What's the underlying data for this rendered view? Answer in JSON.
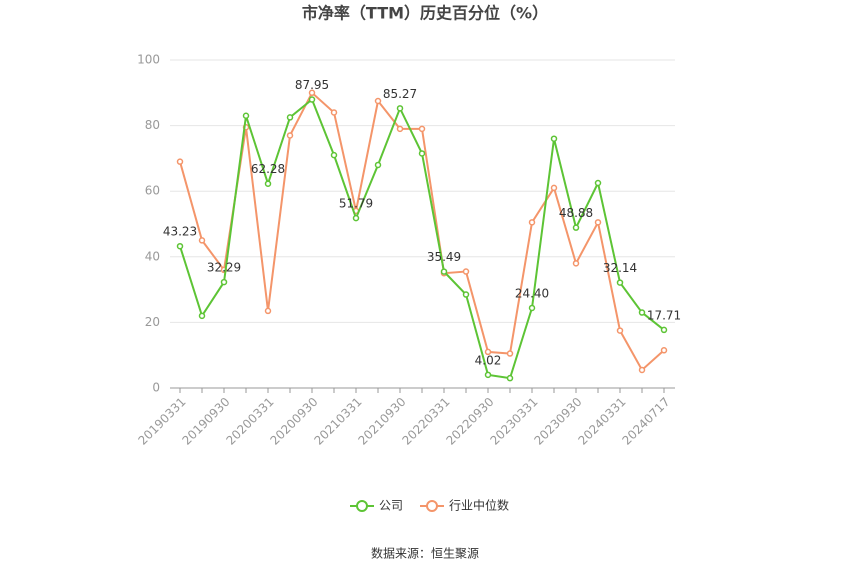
{
  "chart_data": {
    "type": "line",
    "title": "市净率（TTM）历史百分位（%）",
    "source": "数据来源：恒生聚源",
    "categories": [
      "20190331",
      null,
      "20190930",
      null,
      "20200331",
      null,
      "20200930",
      null,
      "20210331",
      null,
      "20210930",
      null,
      "20220331",
      null,
      "20220930",
      null,
      "20230331",
      null,
      "20230930",
      null,
      "20240331",
      null,
      "20240717"
    ],
    "series": [
      {
        "name": "公司",
        "color": "#5dc435",
        "values": [
          43.23,
          22,
          32.29,
          83,
          62.28,
          82.5,
          87.95,
          71,
          51.79,
          68,
          85.27,
          71.5,
          35.49,
          28.5,
          4.02,
          3,
          24.4,
          76,
          48.88,
          62.5,
          32.14,
          23,
          17.71
        ],
        "value_labels": [
          "43.23",
          null,
          "32.29",
          null,
          "62.28",
          null,
          "87.95",
          null,
          "51.79",
          null,
          "85.27",
          null,
          "35.49",
          null,
          "4.02",
          null,
          "24.40",
          null,
          "48.88",
          null,
          "32.14",
          null,
          "17.71"
        ]
      },
      {
        "name": "行业中位数",
        "color": "#f4956a",
        "values": [
          69,
          45,
          36,
          79.5,
          23.5,
          77,
          90,
          84,
          54,
          87.5,
          79,
          79,
          35,
          35.5,
          11,
          10.5,
          50.5,
          61,
          38,
          50.5,
          17.5,
          5.5,
          11.5
        ]
      }
    ],
    "ylim": [
      0,
      100
    ],
    "yticks": [
      0,
      20,
      40,
      60,
      80,
      100
    ],
    "grid": true,
    "legend": "bottom"
  }
}
